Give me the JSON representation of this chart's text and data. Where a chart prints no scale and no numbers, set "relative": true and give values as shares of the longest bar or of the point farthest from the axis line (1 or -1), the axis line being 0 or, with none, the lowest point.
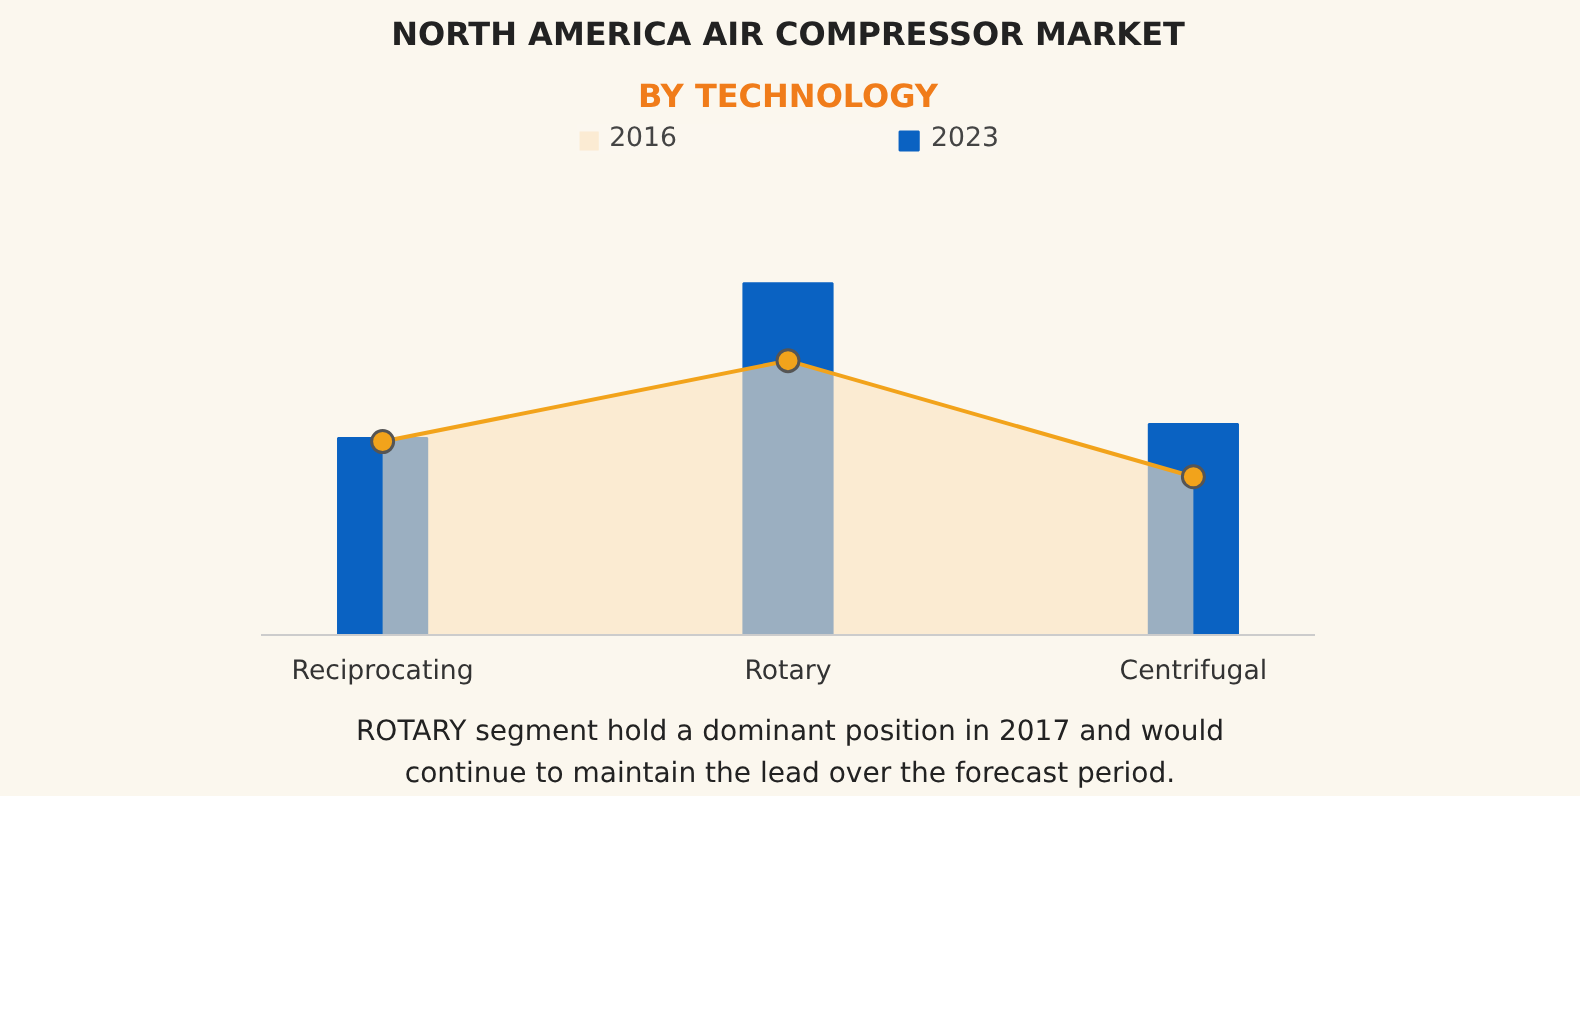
{
  "chart_data": {
    "type": "bar",
    "title": "NORTH AMERICA AIR COMPRESSOR MARKET",
    "subtitle": "BY TECHNOLOGY",
    "categories": [
      "Reciprocating",
      "Rotary",
      "Centrifugal"
    ],
    "relative": true,
    "legend": "top",
    "marker": "circle",
    "series": [
      {
        "name": "2016",
        "type": "area",
        "color": "#fbe2c0",
        "values": [
          0.55,
          0.78,
          0.45
        ]
      },
      {
        "name": "2023",
        "color": "#0a62c2",
        "values": [
          0.56,
          1,
          0.6
        ]
      }
    ],
    "annotations": [
      "ROTARY segment hold a dominant position in 2017 and would continue to maintain the lead over the forecast period."
    ]
  }
}
